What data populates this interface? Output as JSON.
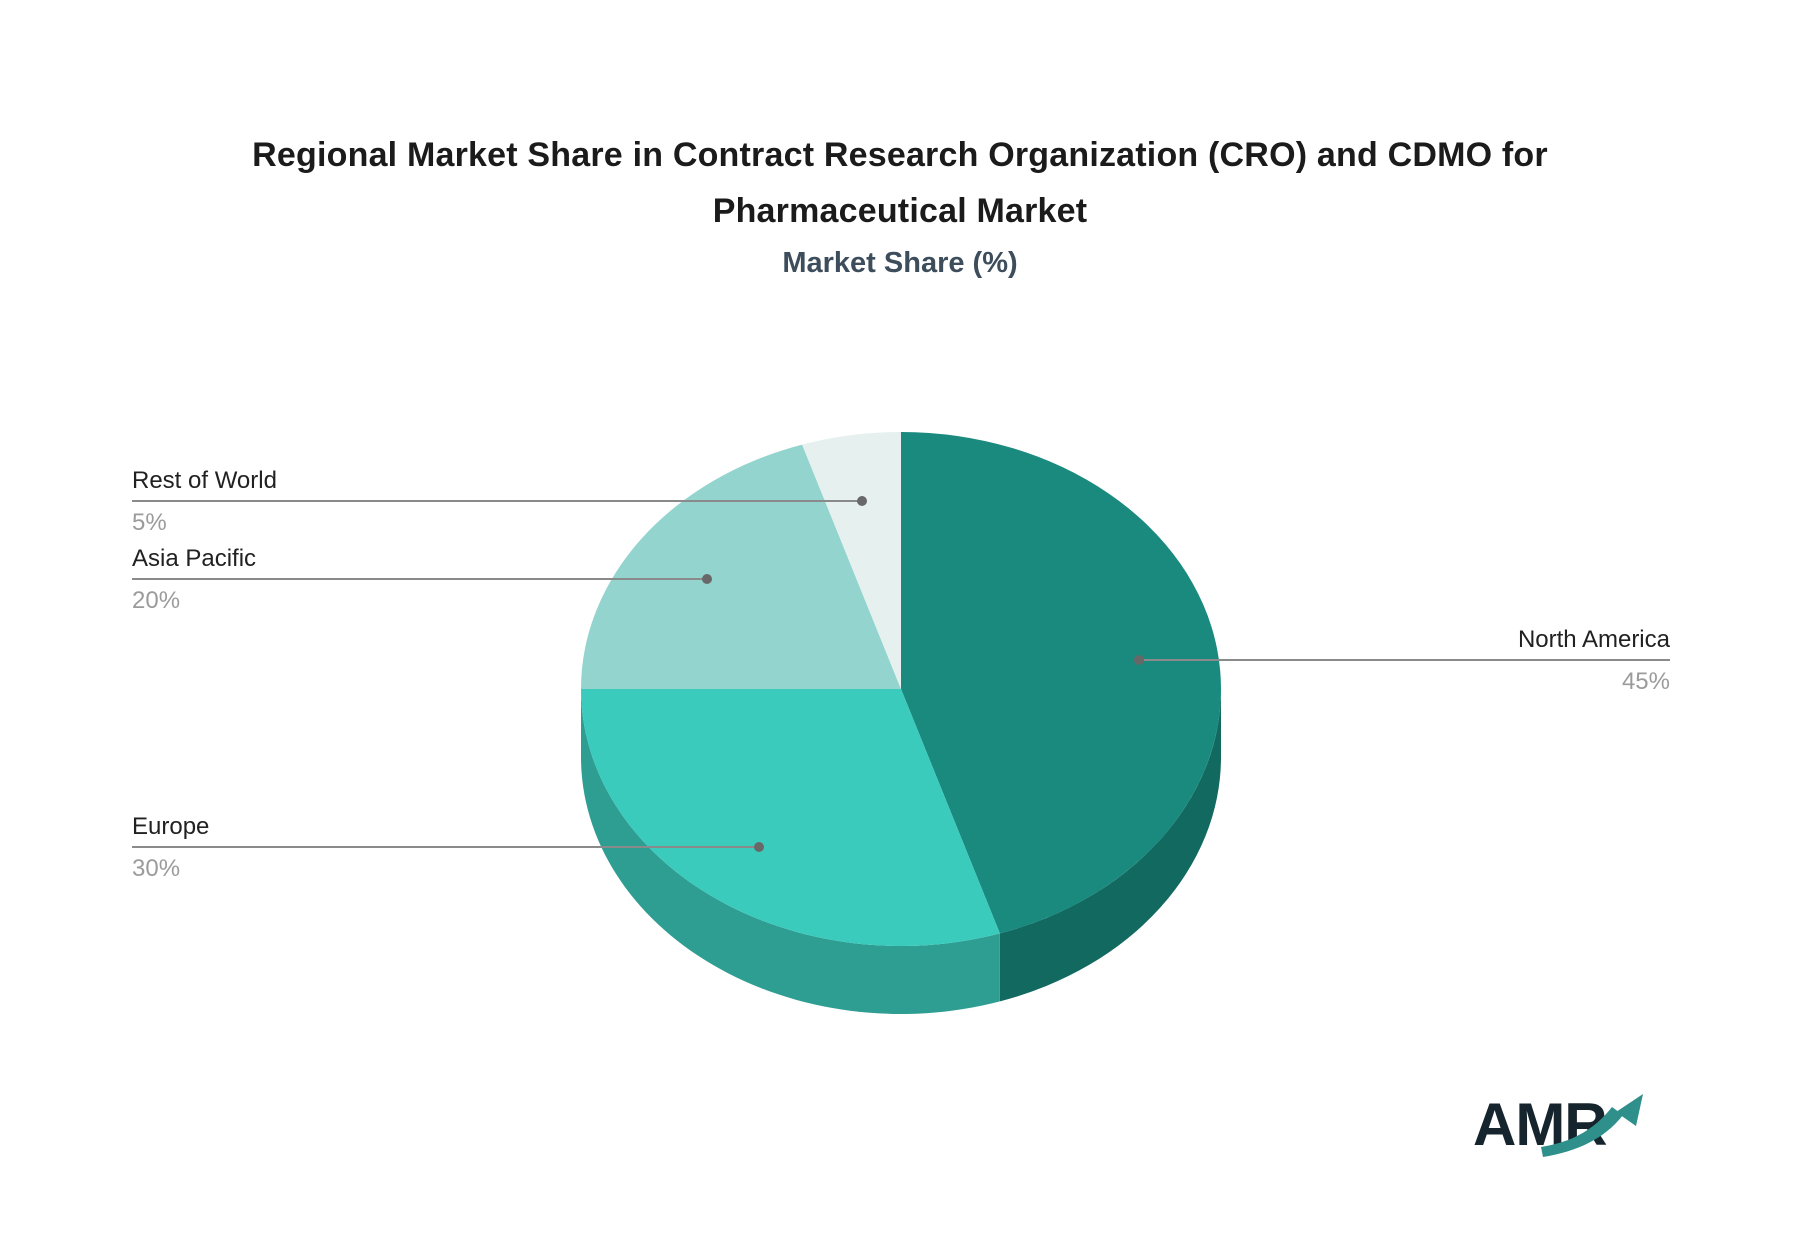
{
  "title": {
    "line1": "Regional Market Share in Contract Research Organization (CRO) and CDMO for",
    "line2": "Pharmaceutical Market"
  },
  "subtitle": "Market Share (%)",
  "logo": {
    "text": "AMR",
    "arrow_color": "#2e8f8b",
    "text_color": "#16242d"
  },
  "colors": {
    "background": "#ffffff",
    "title_text": "#1b1b1b",
    "subtitle_text": "#3d4d5c",
    "callout_label": "#212121",
    "callout_value": "#9b9b9b",
    "callout_line": "#8a8a8a",
    "callout_dot": "#686868"
  },
  "chart_data": {
    "type": "pie",
    "title": "Regional Market Share in Contract Research Organization (CRO) and CDMO for Pharmaceutical Market",
    "subtitle": "Market Share (%)",
    "unit": "%",
    "effect": "3d",
    "start_angle": "12 o'clock",
    "direction": "clockwise",
    "legend_position": "callout-lines",
    "slices": [
      {
        "label": "North America",
        "value": 45,
        "pct_display": "45%",
        "color": "#1a8a7f",
        "rim_color": "#12695f"
      },
      {
        "label": "Europe",
        "value": 30,
        "pct_display": "30%",
        "color": "#3bcbbd",
        "rim_color": "#2e9e93"
      },
      {
        "label": "Asia Pacific",
        "value": 20,
        "pct_display": "20%",
        "color": "#93d5ce",
        "rim_color": "#6fb5ad"
      },
      {
        "label": "Rest of World",
        "value": 5,
        "pct_display": "5%",
        "color": "#e6f1ef",
        "rim_color": "#c2d8d4"
      }
    ]
  }
}
